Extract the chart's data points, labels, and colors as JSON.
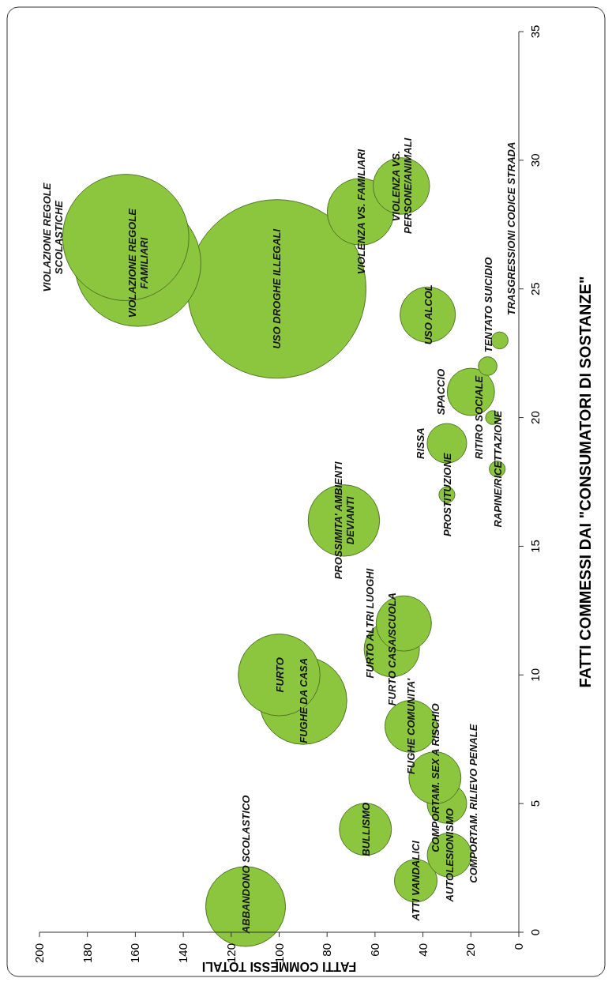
{
  "chart_data": {
    "type": "bubble",
    "xlabel": "FATTI COMMESSI TOTALI",
    "ylabel": "FATTI COMMESSI DAI \"CONSUMATORI DI SOSTANZE\"",
    "xlim": [
      200,
      0
    ],
    "xticks": [
      200,
      180,
      160,
      140,
      120,
      100,
      80,
      60,
      40,
      20,
      0
    ],
    "ylim": [
      0,
      35
    ],
    "yticks": [
      0,
      5,
      10,
      15,
      20,
      25,
      30,
      35
    ],
    "series": [
      {
        "color": "#8cc63f",
        "x": [
          114,
          43,
          29,
          64,
          30,
          35,
          45,
          90,
          100,
          53,
          48,
          73,
          30,
          9,
          30,
          11,
          20,
          13,
          8,
          38,
          101,
          159,
          164,
          66,
          49
        ],
        "values": [
          1,
          2,
          3,
          4,
          5,
          6,
          8,
          9,
          10,
          11,
          12,
          16,
          17,
          18,
          19,
          20,
          21,
          22,
          23,
          24,
          25,
          26,
          27,
          28,
          29
        ],
        "sizes": [
          0.2,
          0.057,
          0.061,
          0.085,
          0.049,
          0.085,
          0.085,
          0.24,
          0.21,
          0.096,
          0.096,
          0.16,
          0.008,
          0.008,
          0.049,
          0.006,
          0.07,
          0.011,
          0.009,
          0.096,
          1,
          0.5,
          0.5,
          0.14,
          0.1
        ],
        "value_labels": [
          "ABBANDONO SCOLASTICO",
          "ATTI VANDALICI",
          "AUTOLESIONISMO",
          "BULLISMO",
          "COMPORTAM. RILIEVO PENALE",
          "COMPORTAM. SEX A RISCHIO",
          "FUGHE COMUNITA'",
          "FUGHE DA CASA",
          "FURTO",
          "FURTO CASA/SCUOLA",
          "FURTO ALTRI LUOGHI",
          "PROSSIMITA' AMBIENTI\nDEVIANTI",
          "PROSTITUZIONE",
          "RAPINE/RICETTAZIONE",
          "RISSA",
          "RITIRO SOCIALE",
          "SPACCIO",
          "TENTATO SUICIDIO",
          "TRASGRESSIONI CODICE STRADA",
          "USO ALCOL",
          "USO DROGHE ILLEGALI",
          "VIOLAZIONE REGOLE\nFAMILIARI",
          "VIOLAZIONE REGOLE\nSCOLASTICHE",
          "VIOLENZA VS. FAMILIARI",
          "VIOLENZA VS.\nPERSONE/ANIMALI"
        ]
      }
    ]
  }
}
